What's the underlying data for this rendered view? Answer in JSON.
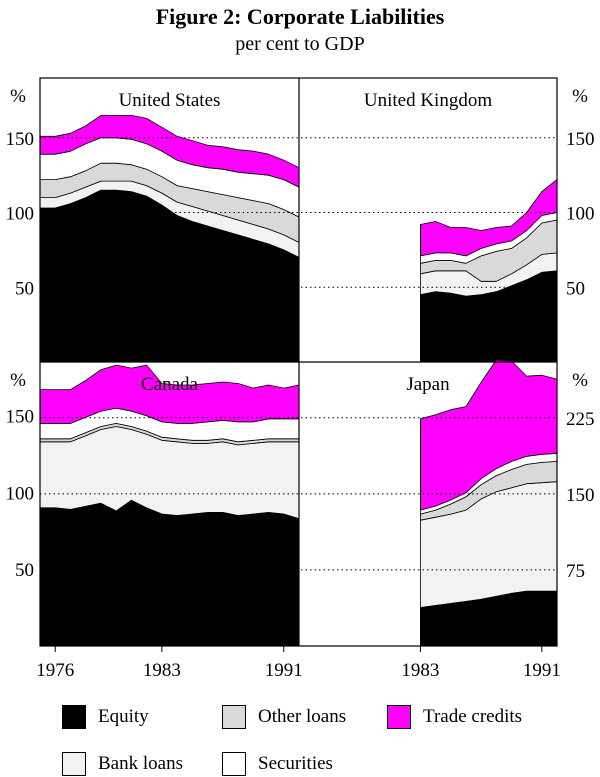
{
  "title": "Figure 2: Corporate Liabilities",
  "subtitle": "per cent to GDP",
  "colors": {
    "equity": "#000000",
    "bank_loans": "#f2f2f2",
    "other_loans": "#d9d9d9",
    "securities": "#ffffff",
    "trade_credits": "#ff00ff",
    "dotted_line": "#000000"
  },
  "legend": [
    {
      "key": "equity",
      "label": "Equity"
    },
    {
      "key": "other_loans",
      "label": "Other loans"
    },
    {
      "key": "trade_credits",
      "label": "Trade credits"
    },
    {
      "key": "bank_loans",
      "label": "Bank loans"
    },
    {
      "key": "securities",
      "label": "Securities"
    }
  ],
  "x_axis": {
    "ticks": [
      "1976",
      "1983",
      "1991"
    ],
    "tick_values": [
      1976,
      1983,
      1991
    ],
    "xlim": [
      1975,
      1992
    ]
  },
  "chart_data": [
    {
      "type": "area",
      "stacked": true,
      "title": "United States",
      "unit_label": "%",
      "axis_side": "left",
      "ylim": [
        0,
        190
      ],
      "yticks": [
        50,
        100,
        150
      ],
      "x": [
        1975,
        1976,
        1977,
        1978,
        1979,
        1980,
        1981,
        1982,
        1983,
        1984,
        1985,
        1986,
        1987,
        1988,
        1989,
        1990,
        1991,
        1992
      ],
      "series": [
        {
          "name": "Equity",
          "key": "equity",
          "values": [
            103,
            103,
            106,
            110,
            115,
            115,
            114,
            111,
            105,
            98,
            94,
            91,
            88,
            85,
            82,
            79,
            75,
            70
          ]
        },
        {
          "name": "Bank loans",
          "key": "bank_loans",
          "values": [
            7,
            7,
            7,
            7,
            6,
            6,
            7,
            7,
            8,
            9,
            10,
            10,
            10,
            10,
            10,
            10,
            10,
            10
          ]
        },
        {
          "name": "Other loans",
          "key": "other_loans",
          "values": [
            12,
            12,
            11,
            11,
            12,
            12,
            11,
            11,
            11,
            11,
            12,
            13,
            14,
            15,
            16,
            17,
            17,
            17
          ]
        },
        {
          "name": "Securities",
          "key": "securities",
          "values": [
            17,
            17,
            17,
            18,
            17,
            17,
            17,
            17,
            17,
            17,
            16,
            16,
            17,
            17,
            18,
            19,
            20,
            20
          ]
        },
        {
          "name": "Trade credits",
          "key": "trade_credits",
          "values": [
            12,
            12,
            12,
            12,
            15,
            15,
            16,
            17,
            16,
            16,
            16,
            15,
            15,
            15,
            15,
            14,
            13,
            13
          ]
        }
      ]
    },
    {
      "type": "area",
      "stacked": true,
      "title": "United Kingdom",
      "unit_label": "%",
      "axis_side": "right",
      "ylim": [
        0,
        190
      ],
      "yticks": [
        50,
        100,
        150
      ],
      "x": [
        1983,
        1984,
        1985,
        1986,
        1987,
        1988,
        1989,
        1990,
        1991,
        1992
      ],
      "series": [
        {
          "name": "Equity",
          "key": "equity",
          "values": [
            45,
            47,
            46,
            44,
            45,
            47,
            51,
            55,
            60,
            61
          ]
        },
        {
          "name": "Bank loans",
          "key": "bank_loans",
          "values": [
            14,
            14,
            15,
            17,
            9,
            7,
            8,
            10,
            12,
            12
          ]
        },
        {
          "name": "Other loans",
          "key": "other_loans",
          "values": [
            7,
            7,
            7,
            5,
            17,
            20,
            17,
            18,
            21,
            22
          ]
        },
        {
          "name": "Securities",
          "key": "securities",
          "values": [
            5,
            5,
            5,
            5,
            5,
            5,
            5,
            5,
            5,
            5
          ]
        },
        {
          "name": "Trade credits",
          "key": "trade_credits",
          "values": [
            21,
            21,
            17,
            19,
            12,
            11,
            10,
            12,
            16,
            22
          ]
        }
      ]
    },
    {
      "type": "area",
      "stacked": true,
      "title": "Canada",
      "unit_label": "%",
      "axis_side": "left",
      "ylim": [
        0,
        185
      ],
      "yticks": [
        50,
        100,
        150
      ],
      "x": [
        1975,
        1976,
        1977,
        1978,
        1979,
        1980,
        1981,
        1982,
        1983,
        1984,
        1985,
        1986,
        1987,
        1988,
        1989,
        1990,
        1991,
        1992
      ],
      "series": [
        {
          "name": "Equity",
          "key": "equity",
          "values": [
            90,
            90,
            89,
            91,
            93,
            88,
            95,
            90,
            86,
            85,
            86,
            87,
            87,
            85,
            86,
            87,
            86,
            83
          ]
        },
        {
          "name": "Bank loans",
          "key": "bank_loans",
          "values": [
            43,
            43,
            44,
            46,
            48,
            55,
            46,
            48,
            48,
            48,
            46,
            45,
            46,
            46,
            46,
            46,
            47,
            50
          ]
        },
        {
          "name": "Other loans",
          "key": "other_loans",
          "values": [
            2,
            2,
            2,
            2,
            2,
            2,
            2,
            2,
            2,
            2,
            2,
            2,
            2,
            2,
            2,
            2,
            2,
            2
          ]
        },
        {
          "name": "Securities",
          "key": "securities",
          "values": [
            10,
            10,
            10,
            10,
            10,
            10,
            10,
            10,
            10,
            10,
            11,
            12,
            12,
            13,
            12,
            13,
            13,
            13
          ]
        },
        {
          "name": "Trade credits",
          "key": "trade_credits",
          "values": [
            22,
            22,
            22,
            24,
            27,
            28,
            28,
            33,
            25,
            25,
            25,
            25,
            25,
            25,
            22,
            22,
            20,
            22
          ]
        }
      ]
    },
    {
      "type": "area",
      "stacked": true,
      "title": "Japan",
      "unit_label": "%",
      "axis_side": "right",
      "ylim": [
        0,
        280
      ],
      "yticks": [
        75,
        150,
        225
      ],
      "x": [
        1983,
        1984,
        1985,
        1986,
        1987,
        1988,
        1989,
        1990,
        1991,
        1992
      ],
      "series": [
        {
          "name": "Equity",
          "key": "equity",
          "values": [
            38,
            40,
            42,
            44,
            46,
            49,
            52,
            54,
            54,
            54
          ]
        },
        {
          "name": "Bank loans",
          "key": "bank_loans",
          "values": [
            86,
            87,
            88,
            90,
            99,
            103,
            104,
            106,
            107,
            108
          ]
        },
        {
          "name": "Other loans",
          "key": "other_loans",
          "values": [
            6,
            7,
            10,
            13,
            14,
            16,
            18,
            19,
            20,
            20
          ]
        },
        {
          "name": "Securities",
          "key": "securities",
          "values": [
            4,
            4,
            4,
            4,
            6,
            7,
            8,
            8,
            8,
            8
          ]
        },
        {
          "name": "Trade credits",
          "key": "trade_credits",
          "values": [
            90,
            90,
            89,
            85,
            95,
            107,
            99,
            79,
            78,
            73
          ]
        }
      ]
    }
  ]
}
